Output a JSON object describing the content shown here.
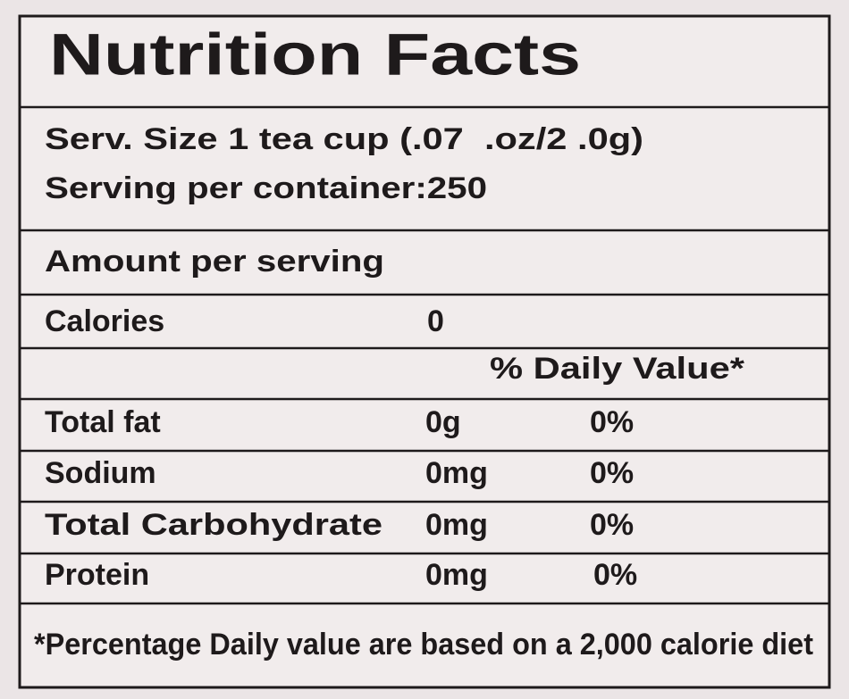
{
  "header": {
    "title": "Nutrition Facts"
  },
  "serving": {
    "size": "Serv. Size 1 tea cup (.07  .oz/2 .0g)",
    "per_container": "Serving per container:250"
  },
  "amount_header": "Amount per serving",
  "calories": {
    "label": "Calories",
    "value": "0"
  },
  "daily_value_header": "% Daily Value*",
  "rows": [
    [
      "Total fat",
      "0g",
      "0%"
    ],
    [
      "Sodium",
      "0mg",
      "0%"
    ],
    [
      "Total Carbohydrate",
      "0mg",
      "0%"
    ],
    [
      "Protein",
      "0mg",
      "0%"
    ]
  ],
  "footnote": "*Percentage Daily value are based on a 2,000 calorie diet"
}
